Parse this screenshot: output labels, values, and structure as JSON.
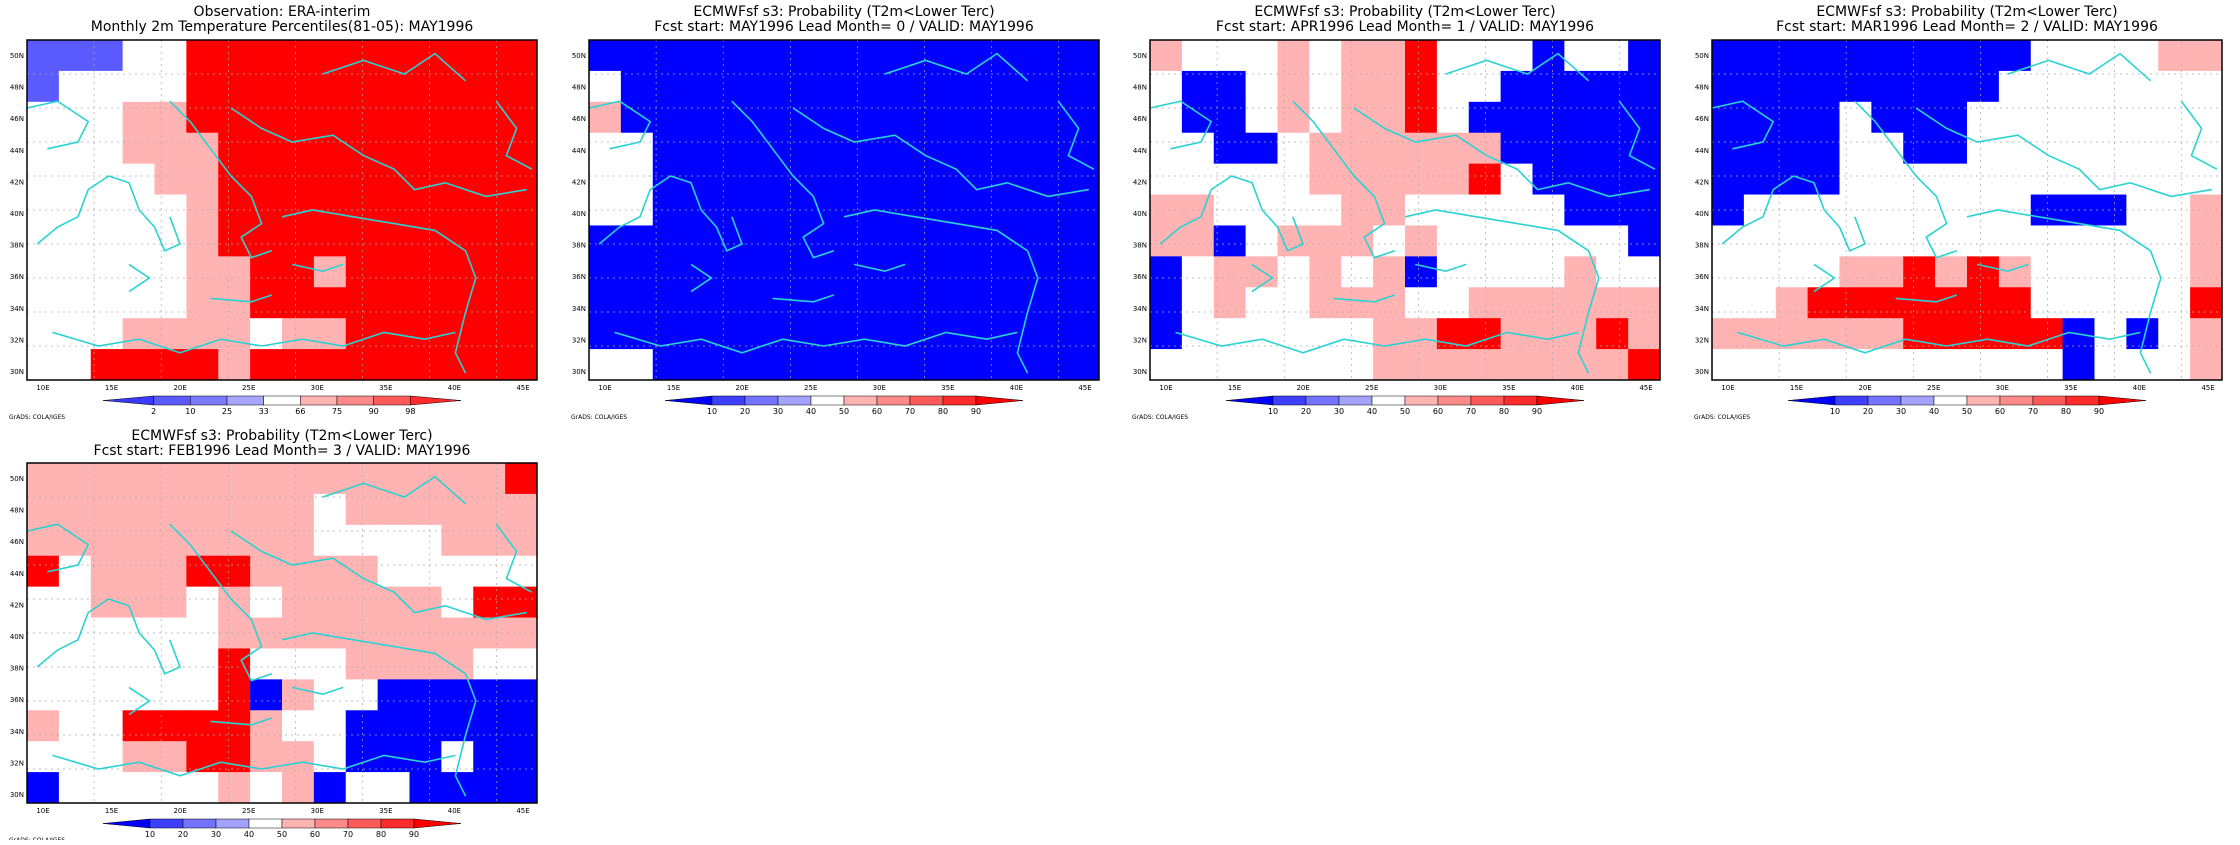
{
  "colors": {
    "cyan_coast": "#2ad3d3",
    "white": "#ffffff",
    "frame": "#000000",
    "blue_palette": [
      "#0000ff",
      "#3f3fff",
      "#7373ff",
      "#a3a3ff"
    ],
    "red_palette": [
      "#ffb3b3",
      "#ff8a8a",
      "#ff5a5a",
      "#ff2a2a",
      "#ff0000"
    ]
  },
  "map_common": {
    "lon_ticks": [
      "10E",
      "15E",
      "20E",
      "25E",
      "30E",
      "35E",
      "40E",
      "45E"
    ],
    "lat_ticks": [
      "50N",
      "48N",
      "46N",
      "44N",
      "42N",
      "40N",
      "38N",
      "36N",
      "34N",
      "32N",
      "30N"
    ],
    "credit": "GrADS: COLA/IGES"
  },
  "panels": [
    {
      "id": "obs",
      "title_line1": "Observation: ERA-interim",
      "title_line2": "Monthly 2m Temperature Percentiles(81-05): MAY1996",
      "colorbar_labels": [
        "2",
        "10",
        "25",
        "33",
        "66",
        "75",
        "90",
        "98"
      ],
      "colorbar_colors": [
        "#3a3aff",
        "#5a5aff",
        "#7a7aff",
        "#a6a6ff",
        "#ffffff",
        "#ffb3b3",
        "#ff8a8a",
        "#ff5a5a",
        "#ff2a2a"
      ],
      "grid": [
        "BBBWWRRRRRRRRRRR",
        "BWWWWRRRRRRRRRRR",
        "WWWPPRRRRRRRRRRR",
        "WWWPPPRRRRRRRRRR",
        "WWWWPPRRRRRRRRRR",
        "WWWWWPRRRRRRRRRR",
        "WWWWWPRRRRRRRRRR",
        "WWWWWPPRRPRRRRRR",
        "WWWWWPPRRRRRRRRR",
        "WWWPPPPWPPRRRRRR",
        "WWRRRRPRRRRRRRRR"
      ]
    },
    {
      "id": "lead0",
      "title_line1": "ECMWFsf s3: Probability (T2m<Lower Terc)",
      "title_line2": "Fcst start: MAY1996  Lead Month= 0 / VALID: MAY1996",
      "colorbar_labels": [
        "10",
        "20",
        "30",
        "40",
        "50",
        "60",
        "70",
        "80",
        "90"
      ],
      "colorbar_colors": [
        "#0000ff",
        "#3f3fff",
        "#7373ff",
        "#a3a3ff",
        "#ffffff",
        "#ffb3b3",
        "#ff8a8a",
        "#ff5a5a",
        "#ff2a2a",
        "#ff0000"
      ],
      "grid": [
        "BBBBBBBBBBBBBBBB",
        "WBBBBBBBBBBBBBBB",
        "PBBBBBBBBBBBBBBB",
        "WWBBBBBBBBBBBBBB",
        "WWBBBBBBBBBBBBBB",
        "WWBBBBBBBBBBBBBB",
        "BBBBBBBBBBBBBBBB",
        "BBBBBBBBBBBBBBBB",
        "BBBBBBBBBBBBBBBB",
        "BBBBBBBBBBBBBBBB",
        "WWBBBBBBBBBBBBBB"
      ]
    },
    {
      "id": "lead1",
      "title_line1": "ECMWFsf s3: Probability (T2m<Lower Terc)",
      "title_line2": "Fcst start: APR1996  Lead Month= 1 / VALID: MAY1996",
      "colorbar_labels": [
        "10",
        "20",
        "30",
        "40",
        "50",
        "60",
        "70",
        "80",
        "90"
      ],
      "colorbar_colors": [
        "#0000ff",
        "#3f3fff",
        "#7373ff",
        "#a3a3ff",
        "#ffffff",
        "#ffb3b3",
        "#ff8a8a",
        "#ff5a5a",
        "#ff2a2a",
        "#ff0000"
      ],
      "grid": [
        "PWWWPWPPRWWWBWWB",
        "WBBWPWPPRWWBBBBB",
        "WBBWPWPPRWBBBBBB",
        "WWBBWPPPPPPBBBBB",
        "WWWWWPPPPPRWBBBB",
        "PPWWWWPPWWWWWBBB",
        "PPBWPPPWPWWWWWWB",
        "BWPPWPWPBWWWWPWW",
        "BWPWWPPPWWPPPPPP",
        "BWWWWWWPPRRPPPRP",
        "WWWWWWWPPPPPPPPR"
      ]
    },
    {
      "id": "lead2",
      "title_line1": "ECMWFsf s3: Probability (T2m<Lower Terc)",
      "title_line2": "Fcst start: MAR1996  Lead Month= 2 / VALID: MAY1996",
      "colorbar_labels": [
        "10",
        "20",
        "30",
        "40",
        "50",
        "60",
        "70",
        "80",
        "90"
      ],
      "colorbar_colors": [
        "#0000ff",
        "#3f3fff",
        "#7373ff",
        "#a3a3ff",
        "#ffffff",
        "#ffb3b3",
        "#ff8a8a",
        "#ff5a5a",
        "#ff2a2a",
        "#ff0000"
      ],
      "grid": [
        "BBBBBBBBBBWWWWPP",
        "BBBBBBBBBWWWWWWW",
        "BBBBWBBBWWWWWWWW",
        "BBBBWWBBWWWWWWWW",
        "BBBBWWWWWWWWWWWW",
        "BWWWWWWWWWBBBWWP",
        "WWWWWWWWWWWWWWWP",
        "WWWWPPRPRPWWWWWP",
        "WWPRRRRRRRWWWWWR",
        "PPPPPPRRRRRBWBWP",
        "WWWWWWWWWWWBWWWP"
      ]
    },
    {
      "id": "lead3",
      "title_line1": "ECMWFsf s3: Probability (T2m<Lower Terc)",
      "title_line2": "Fcst start: FEB1996  Lead Month= 3 / VALID: MAY1996",
      "colorbar_labels": [
        "10",
        "20",
        "30",
        "40",
        "50",
        "60",
        "70",
        "80",
        "90"
      ],
      "colorbar_colors": [
        "#0000ff",
        "#3f3fff",
        "#7373ff",
        "#a3a3ff",
        "#ffffff",
        "#ffb3b3",
        "#ff8a8a",
        "#ff5a5a",
        "#ff2a2a",
        "#ff0000"
      ],
      "grid": [
        "PPPPPPPPPPPPPPPR",
        "PPPPPPPPPWPPPPPP",
        "PPPPPPPPPWWWWPPP",
        "RWPPPRRPPPPWWWWW",
        "WWPPPWPWPPPPPWRR",
        "WWWWWWPPPPPPPPPP",
        "WWWWWWRWWWPPPPWW",
        "WWWWWWRBPWWBBBBB",
        "PWWRRRRPWWBBBBBB",
        "WWWPPRRPPWBBBWBB",
        "BWWWWWPWPBWWBBBB"
      ]
    }
  ]
}
